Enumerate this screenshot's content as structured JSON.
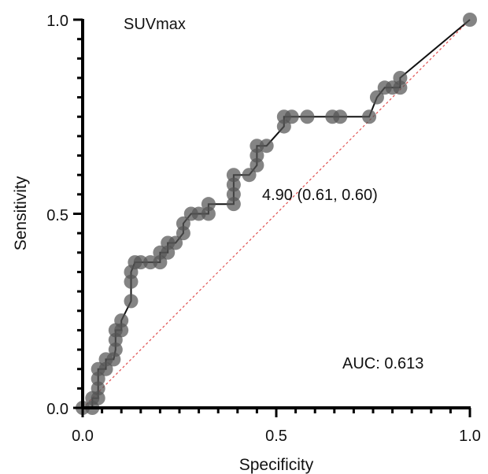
{
  "chart_data": {
    "type": "line",
    "title": "SUVmax",
    "xlabel": "Specificity",
    "ylabel": "Sensitivity",
    "xlim": [
      0,
      1
    ],
    "ylim": [
      0,
      1
    ],
    "x_ticks": [
      "0.0",
      "0.5",
      "1.0"
    ],
    "y_ticks": [
      "0.0",
      "0.5",
      "1.0"
    ],
    "grid": false,
    "annotations": {
      "cutoff": "4.90 (0.61, 0.60)",
      "auc": "AUC: 0.613"
    },
    "colors": {
      "curve": "#111111",
      "points": "#555555",
      "reference": "#e05050",
      "axes": "#000000"
    },
    "series": [
      {
        "points": [
          [
            0.0,
            0.0
          ],
          [
            0.025,
            0.0
          ],
          [
            0.025,
            0.025
          ],
          [
            0.04,
            0.025
          ],
          [
            0.04,
            0.05
          ],
          [
            0.04,
            0.075
          ],
          [
            0.04,
            0.1
          ],
          [
            0.06,
            0.1
          ],
          [
            0.06,
            0.125
          ],
          [
            0.08,
            0.125
          ],
          [
            0.085,
            0.15
          ],
          [
            0.085,
            0.175
          ],
          [
            0.085,
            0.2
          ],
          [
            0.1,
            0.2
          ],
          [
            0.1,
            0.225
          ],
          [
            0.125,
            0.275
          ],
          [
            0.125,
            0.325
          ],
          [
            0.125,
            0.35
          ],
          [
            0.135,
            0.375
          ],
          [
            0.15,
            0.375
          ],
          [
            0.175,
            0.375
          ],
          [
            0.2,
            0.375
          ],
          [
            0.2,
            0.4
          ],
          [
            0.22,
            0.4
          ],
          [
            0.22,
            0.425
          ],
          [
            0.24,
            0.425
          ],
          [
            0.26,
            0.45
          ],
          [
            0.26,
            0.475
          ],
          [
            0.28,
            0.5
          ],
          [
            0.3,
            0.5
          ],
          [
            0.325,
            0.5
          ],
          [
            0.325,
            0.525
          ],
          [
            0.39,
            0.525
          ],
          [
            0.39,
            0.55
          ],
          [
            0.39,
            0.575
          ],
          [
            0.39,
            0.6
          ],
          [
            0.43,
            0.6
          ],
          [
            0.45,
            0.625
          ],
          [
            0.45,
            0.65
          ],
          [
            0.45,
            0.675
          ],
          [
            0.475,
            0.675
          ],
          [
            0.52,
            0.725
          ],
          [
            0.52,
            0.75
          ],
          [
            0.54,
            0.75
          ],
          [
            0.58,
            0.75
          ],
          [
            0.645,
            0.75
          ],
          [
            0.665,
            0.75
          ],
          [
            0.74,
            0.75
          ],
          [
            0.76,
            0.8
          ],
          [
            0.78,
            0.825
          ],
          [
            0.8,
            0.825
          ],
          [
            0.82,
            0.825
          ],
          [
            0.82,
            0.85
          ],
          [
            1.0,
            1.0
          ]
        ]
      }
    ]
  }
}
